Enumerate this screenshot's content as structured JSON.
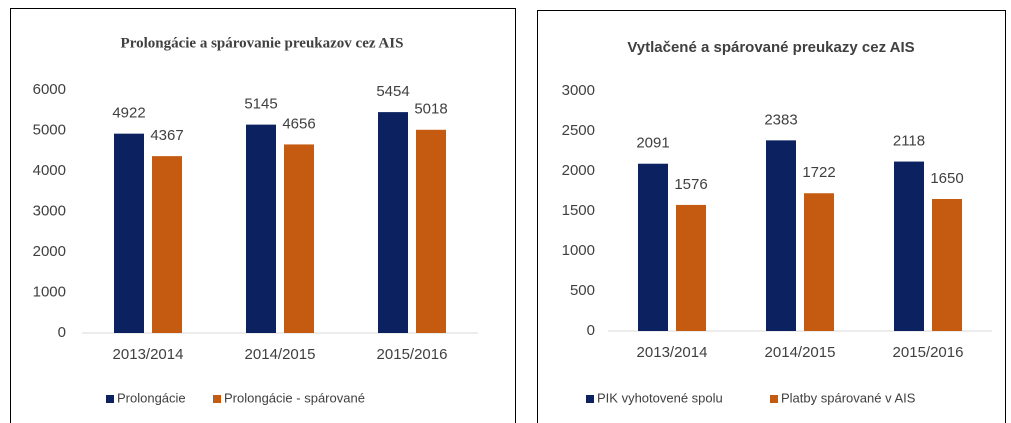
{
  "chart_data": [
    {
      "type": "bar",
      "title": "Prolongácie a spárovanie preukazov cez AIS",
      "categories": [
        "2013/2014",
        "2014/2015",
        "2015/2016"
      ],
      "series": [
        {
          "name": "Prolongácie",
          "color": "#0c2160",
          "values": [
            4922,
            5145,
            5454
          ]
        },
        {
          "name": "Prolongácie - spárované",
          "color": "#c55a11",
          "values": [
            4367,
            4656,
            5018
          ]
        }
      ],
      "ylim": [
        0,
        6000
      ],
      "yticks": [
        0,
        1000,
        2000,
        3000,
        4000,
        5000,
        6000
      ],
      "grid": false,
      "legend": "bottom"
    },
    {
      "type": "bar",
      "title": "Vytlačené a spárované preukazy cez AIS",
      "categories": [
        "2013/2014",
        "2014/2015",
        "2015/2016"
      ],
      "series": [
        {
          "name": "PIK vyhotovené spolu",
          "color": "#0c2160",
          "values": [
            2091,
            2383,
            2118
          ]
        },
        {
          "name": "Platby spárované v AIS",
          "color": "#c55a11",
          "values": [
            1576,
            1722,
            1650
          ]
        }
      ],
      "ylim": [
        0,
        3000
      ],
      "yticks": [
        0,
        500,
        1000,
        1500,
        2000,
        2500,
        3000
      ],
      "grid": false,
      "legend": "bottom"
    }
  ]
}
